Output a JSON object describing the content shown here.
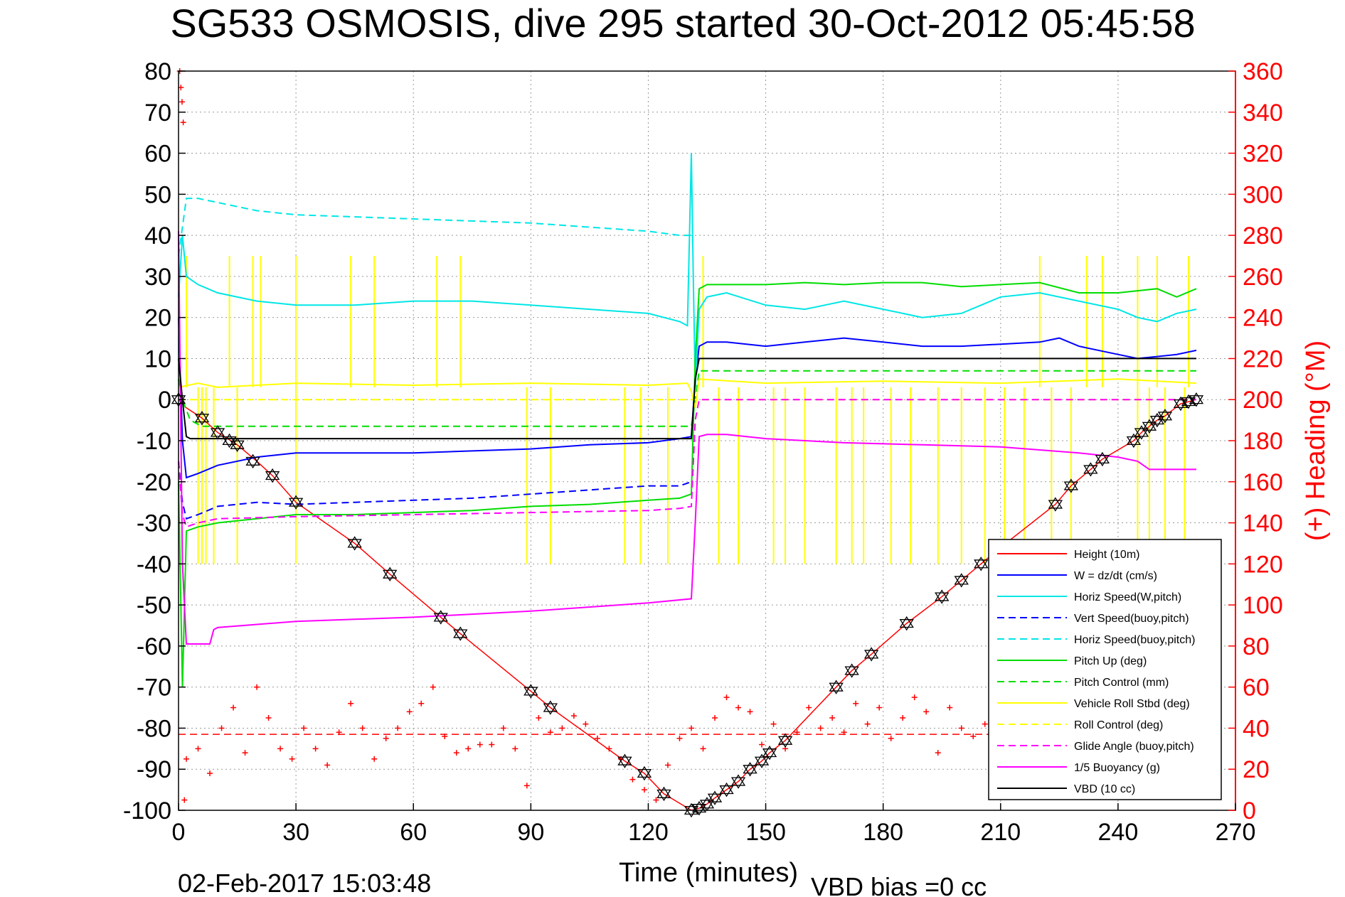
{
  "chart_data": {
    "type": "line",
    "title": "SG533 OSMOSIS, dive 295 started 30-Oct-2012 05:45:58",
    "xlabel": "Time (minutes)",
    "ylabel_right": "(+) Heading (°M)",
    "xlim": [
      0,
      270
    ],
    "ylim": [
      -100,
      80
    ],
    "ylim_right": [
      0,
      360
    ],
    "xticks": [
      "0",
      "30",
      "60",
      "90",
      "120",
      "150",
      "180",
      "210",
      "240",
      "270"
    ],
    "yticks": [
      "80",
      "70",
      "60",
      "50",
      "40",
      "30",
      "20",
      "10",
      "0",
      "-10",
      "-20",
      "-30",
      "-40",
      "-50",
      "-60",
      "-70",
      "-80",
      "-90",
      "-100"
    ],
    "yticks_right": [
      "360",
      "340",
      "320",
      "300",
      "280",
      "260",
      "240",
      "220",
      "200",
      "180",
      "160",
      "140",
      "120",
      "100",
      "80",
      "60",
      "40",
      "20",
      "0"
    ],
    "grid": true,
    "legend_placement": "bottom-right",
    "footer_timestamp": "02-Feb-2017 15:03:48",
    "footer_note": "VBD bias =0 cc",
    "series": [
      {
        "name": "Height (10m)",
        "color": "#ff0000",
        "dash": "solid",
        "x": [
          0,
          2,
          6,
          10,
          15,
          20,
          24,
          30,
          45,
          54,
          67,
          72,
          90,
          95,
          114,
          119,
          124,
          131,
          133,
          135,
          137,
          140,
          143,
          146,
          149,
          151,
          155,
          168,
          172,
          177,
          186,
          195,
          200,
          205,
          210,
          224,
          228,
          233,
          236,
          244,
          246,
          248,
          250,
          252,
          256,
          258,
          260
        ],
        "y": [
          0,
          -2,
          -4.5,
          -8,
          -11,
          -15,
          -18.5,
          -25,
          -35,
          -42.5,
          -53,
          -57,
          -71,
          -75,
          -88,
          -91,
          -96,
          -100,
          -99.5,
          -98.5,
          -97,
          -95,
          -93,
          -90,
          -88,
          -86,
          -83,
          -70,
          -66,
          -62,
          -54.5,
          -48,
          -44,
          -40,
          -36,
          -25.5,
          -21,
          -17,
          -14.5,
          -10,
          -8,
          -6.5,
          -5,
          -4,
          -1,
          -0.5,
          0
        ]
      },
      {
        "name": "W = dz/dt (cm/s)",
        "color": "#0000ff",
        "dash": "solid",
        "x": [
          0,
          1,
          2,
          5,
          10,
          20,
          30,
          45,
          60,
          75,
          90,
          105,
          120,
          128,
          131,
          132,
          133,
          135,
          140,
          150,
          160,
          170,
          180,
          190,
          200,
          210,
          220,
          225,
          230,
          240,
          245,
          250,
          255,
          260
        ],
        "y": [
          20,
          -10,
          -19,
          -18,
          -16,
          -14,
          -13,
          -13,
          -13,
          -12.5,
          -12,
          -11,
          -10.5,
          -9.5,
          -9,
          5,
          13,
          14,
          14,
          13,
          14,
          15,
          14,
          13,
          13,
          13.5,
          14,
          15,
          13,
          11,
          10,
          10.5,
          11,
          12
        ]
      },
      {
        "name": "Horiz Speed(W,pitch)",
        "color": "#00e6e6",
        "dash": "solid",
        "x": [
          0,
          1,
          2,
          5,
          10,
          20,
          30,
          45,
          60,
          75,
          90,
          105,
          120,
          128,
          130,
          131,
          131.5,
          132,
          133,
          135,
          140,
          150,
          160,
          170,
          180,
          190,
          200,
          210,
          220,
          230,
          240,
          245,
          250,
          255,
          260
        ],
        "y": [
          25,
          40,
          30,
          28,
          26,
          24,
          23,
          23,
          24,
          24,
          23,
          22,
          21,
          19,
          18,
          60,
          30,
          3,
          22,
          25,
          26,
          23,
          22,
          24,
          22,
          20,
          21,
          25,
          26,
          24,
          22,
          20,
          19,
          21,
          22
        ]
      },
      {
        "name": "Vert Speed(buoy,pitch)",
        "color": "#0000ff",
        "dash": "dashed",
        "x": [
          0,
          1,
          2,
          5,
          10,
          20,
          30,
          45,
          60,
          75,
          90,
          105,
          120,
          128,
          131
        ],
        "y": [
          -15,
          -25,
          -29,
          -28,
          -26,
          -25,
          -25.5,
          -25,
          -24.5,
          -24,
          -23,
          -22,
          -21,
          -21,
          -20
        ]
      },
      {
        "name": "Horiz Speed(buoy,pitch)",
        "color": "#00e6e6",
        "dash": "dashed",
        "x": [
          0,
          2,
          5,
          10,
          20,
          30,
          45,
          60,
          75,
          90,
          105,
          120,
          128,
          131
        ],
        "y": [
          35,
          49,
          49,
          48,
          46,
          45,
          44.5,
          44,
          43.5,
          43,
          42,
          41,
          40,
          40
        ]
      },
      {
        "name": "Pitch Up (deg)",
        "color": "#00dd00",
        "dash": "solid",
        "x": [
          0,
          1,
          2,
          5,
          10,
          20,
          30,
          45,
          60,
          75,
          90,
          105,
          120,
          128,
          131,
          132,
          133,
          135,
          140,
          150,
          160,
          170,
          180,
          190,
          200,
          210,
          220,
          230,
          240,
          250,
          255,
          260
        ],
        "y": [
          -20,
          -70,
          -32,
          -31,
          -30,
          -29,
          -28,
          -28,
          -27.5,
          -27,
          -26,
          -25.5,
          -24.5,
          -24,
          -23,
          10,
          27,
          28,
          28,
          28,
          28.5,
          28,
          28.5,
          28.5,
          27.5,
          28,
          28.5,
          26,
          26,
          27,
          25,
          27
        ]
      },
      {
        "name": "Pitch Control (mm)",
        "color": "#00dd00",
        "dash": "dashed",
        "x": [
          0,
          1,
          3,
          6,
          10,
          131,
          132,
          133,
          260
        ],
        "y": [
          5,
          0,
          -5,
          -6.5,
          -6.5,
          -6.5,
          0,
          7,
          7
        ]
      },
      {
        "name": "Vehicle Roll Stbd (deg)",
        "color": "#ffff00",
        "dash": "solid",
        "x": [
          0,
          5,
          10,
          30,
          60,
          90,
          120,
          130,
          131,
          132,
          133,
          150,
          180,
          210,
          240,
          260
        ],
        "y": [
          3,
          4,
          3,
          4,
          3.5,
          4,
          3.5,
          4,
          2,
          -2,
          5,
          4,
          4.5,
          4,
          5,
          4
        ]
      },
      {
        "name": "Roll Control (deg)",
        "color": "#ffff00",
        "dash": "dashed",
        "x": [
          0,
          260
        ],
        "y": [
          0,
          0
        ]
      },
      {
        "name": "Glide Angle (buoy,pitch)",
        "color": "#ff00ff",
        "dash": "dashed",
        "x": [
          0,
          1,
          2,
          5,
          10,
          30,
          60,
          90,
          120,
          128,
          131,
          132,
          133,
          260
        ],
        "y": [
          -15,
          -28,
          -31,
          -30,
          -29,
          -28.5,
          -28,
          -27.5,
          -27,
          -26.5,
          -26,
          -5,
          0,
          0
        ]
      },
      {
        "name": "1/5 Buoyancy (g)",
        "color": "#ff00ff",
        "dash": "solid",
        "x": [
          0,
          1,
          2,
          8,
          9,
          10,
          30,
          60,
          90,
          120,
          131,
          132,
          133,
          135,
          140,
          150,
          170,
          190,
          210,
          230,
          240,
          245,
          248,
          250,
          255,
          260
        ],
        "y": [
          41,
          -40,
          -59.5,
          -59.5,
          -56,
          -55.5,
          -54,
          -53,
          -51.5,
          -49.5,
          -48.5,
          -30,
          -9,
          -8.5,
          -8.5,
          -9.5,
          -10.5,
          -11,
          -11.5,
          -13,
          -14,
          -15,
          -17,
          -17,
          -17,
          -17
        ]
      },
      {
        "name": "VBD (10 cc)",
        "color": "#000000",
        "dash": "solid",
        "x": [
          0,
          1,
          2,
          3,
          30,
          60,
          90,
          120,
          131,
          132,
          133,
          135,
          260
        ],
        "y": [
          10,
          0,
          -9,
          -9.5,
          -9.5,
          -9.5,
          -9.5,
          -9.5,
          -9.5,
          5,
          10,
          10,
          10
        ]
      }
    ],
    "yellow_spikes": {
      "up_to": 35,
      "down_to": -40,
      "up_x": [
        2,
        13,
        19,
        21,
        30,
        44,
        50,
        66,
        72,
        134,
        220,
        232,
        236,
        245,
        250,
        258
      ],
      "down_x": [
        5,
        6,
        7,
        9,
        15,
        30,
        89,
        95,
        114,
        118,
        125,
        138,
        143,
        152,
        155,
        160,
        168,
        172,
        175,
        182,
        187,
        194,
        200,
        206,
        211,
        216,
        223,
        228,
        245,
        248,
        252,
        257
      ]
    },
    "heading": {
      "name": "(+) Heading (°M)",
      "color": "#ff0000",
      "axis": "right",
      "mean": 37,
      "x_start": [
        0.3,
        0.6,
        0.9,
        1.2,
        1.5
      ],
      "y_start": [
        360,
        352,
        345,
        335,
        5
      ],
      "x": [
        2,
        5,
        8,
        11,
        14,
        17,
        20,
        23,
        26,
        29,
        32,
        35,
        38,
        41,
        44,
        47,
        50,
        53,
        56,
        59,
        62,
        65,
        68,
        71,
        74,
        77,
        80,
        83,
        86,
        89,
        92,
        95,
        98,
        101,
        104,
        107,
        110,
        113,
        116,
        119,
        122,
        125,
        128,
        131,
        134,
        137,
        140,
        143,
        146,
        149,
        152,
        155,
        158,
        161,
        164,
        167,
        170,
        173,
        176,
        179,
        182,
        185,
        188,
        191,
        194,
        197,
        200,
        203,
        206,
        209,
        212,
        215,
        218,
        221,
        224,
        227,
        230,
        233,
        236,
        239,
        242,
        245,
        248,
        251,
        254,
        257,
        260
      ],
      "y": [
        25,
        30,
        18,
        40,
        50,
        28,
        60,
        45,
        30,
        25,
        40,
        30,
        22,
        38,
        52,
        40,
        25,
        35,
        40,
        48,
        52,
        60,
        36,
        28,
        30,
        32,
        32,
        40,
        30,
        12,
        45,
        38,
        40,
        46,
        42,
        35,
        30,
        25,
        15,
        10,
        5,
        22,
        35,
        40,
        30,
        45,
        55,
        50,
        48,
        32,
        42,
        30,
        38,
        50,
        40,
        45,
        38,
        52,
        42,
        50,
        35,
        45,
        55,
        48,
        28,
        50,
        40,
        36,
        42,
        48,
        58,
        40,
        36,
        60,
        42,
        48,
        52,
        56,
        60,
        52,
        46,
        40,
        46,
        55,
        50,
        48,
        50
      ]
    },
    "markers": {
      "style": "star-of-david",
      "x": [
        0,
        6,
        10,
        13,
        15,
        19,
        24,
        30,
        45,
        54,
        67,
        72,
        90,
        95,
        114,
        119,
        124,
        131,
        133,
        135,
        137,
        140,
        143,
        146,
        149,
        151,
        155,
        168,
        172,
        177,
        186,
        195,
        200,
        205,
        210,
        224,
        228,
        233,
        236,
        244,
        246,
        248,
        250,
        252,
        256,
        258,
        260
      ],
      "y": [
        0,
        -4.5,
        -8,
        -10,
        -11,
        -15,
        -18.5,
        -25,
        -35,
        -42.5,
        -53,
        -57,
        -71,
        -75,
        -88,
        -91,
        -96,
        -100,
        -99.5,
        -98.5,
        -97,
        -95,
        -93,
        -90,
        -88,
        -86,
        -83,
        -70,
        -66,
        -62,
        -54.5,
        -48,
        -44,
        -40,
        -36,
        -25.5,
        -21,
        -17,
        -14.5,
        -10,
        -8,
        -6.5,
        -5,
        -4,
        -1,
        -0.5,
        0
      ]
    }
  }
}
